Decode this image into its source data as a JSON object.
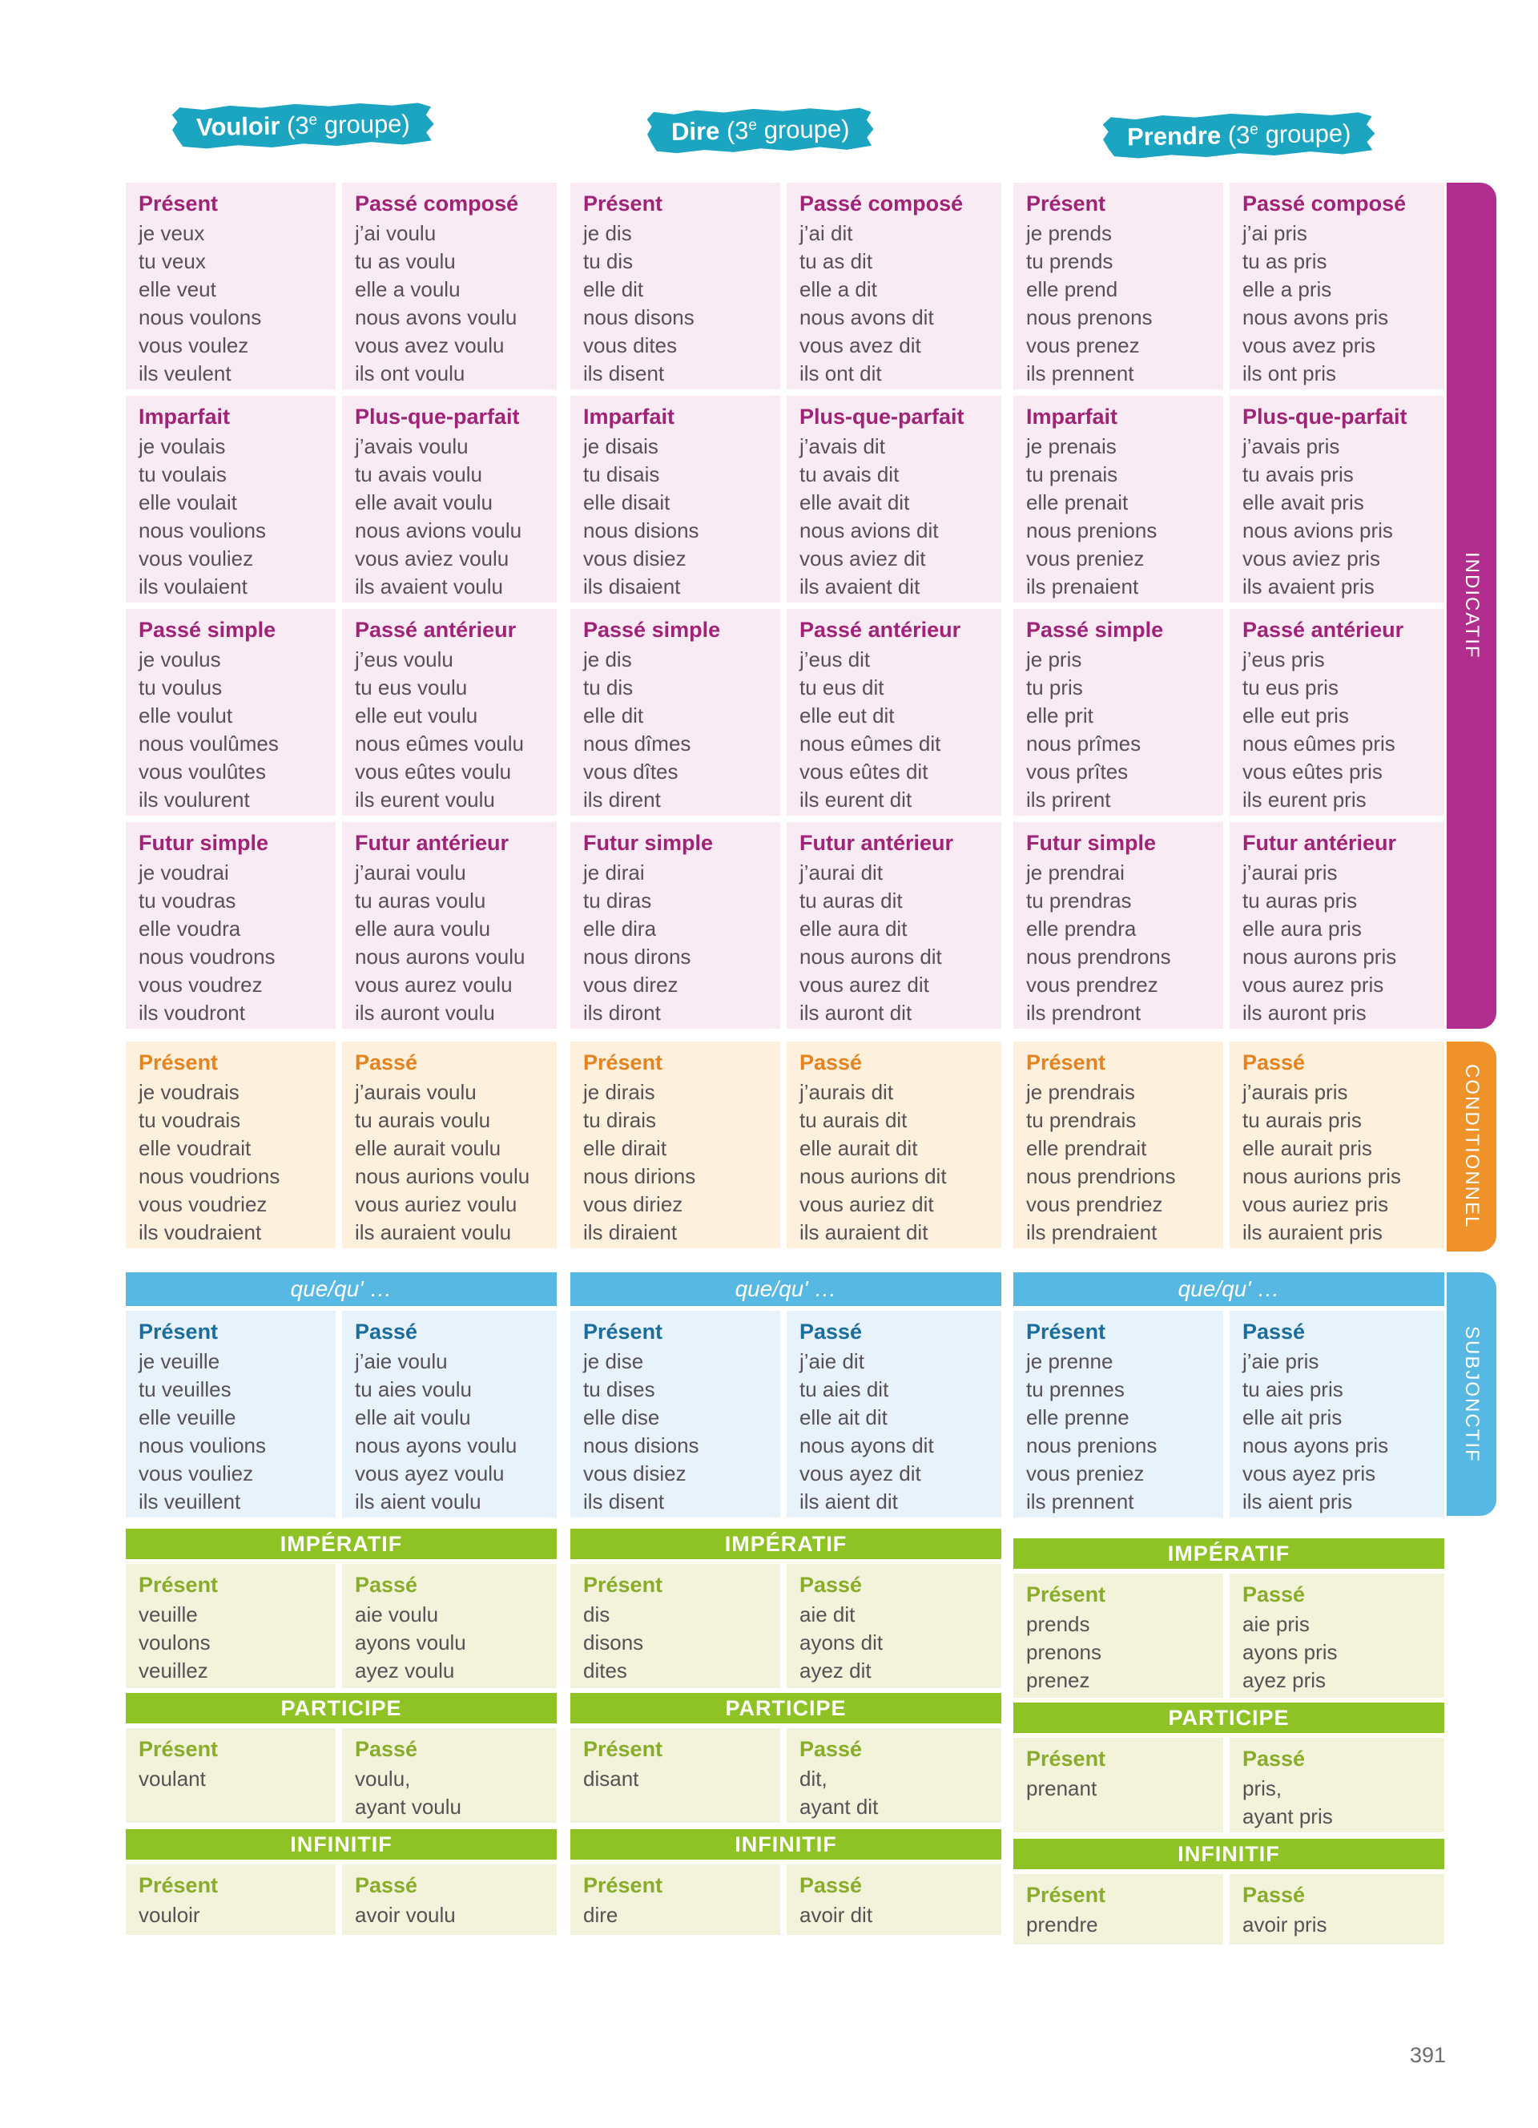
{
  "page": {
    "number": "391"
  },
  "colors": {
    "badge_teal": "#1ba5c0",
    "indicatif_bg": "#f8ebf4",
    "indicatif_title": "#a02377",
    "indicatif_tab": "#b22e8e",
    "conditionnel_bg": "#fdf1de",
    "conditionnel_title": "#e6831f",
    "conditionnel_tab": "#f0922a",
    "subjonctif_bg": "#e8f2fb",
    "subjonctif_title": "#1a6d9d",
    "subjonctif_tab": "#57b9e3",
    "green_bar": "#8fc325",
    "green_bg": "#f2f3da",
    "green_title": "#89ad2b",
    "body_text": "#575155"
  },
  "mode_tabs": [
    {
      "label": "INDICATIF"
    },
    {
      "label": "CONDITIONNEL"
    },
    {
      "label": "SUBJONCTIF"
    }
  ],
  "verbs": [
    {
      "name": "Vouloir",
      "group_open": " (3",
      "group_sup": "e",
      "group_rest": " groupe)",
      "subjonctif_header": "que/qu' …",
      "imperatif_header": "IMPÉRATIF",
      "participe_header": "PARTICIPE",
      "infinitif_header": "INFINITIF",
      "indicatif": [
        {
          "title": "Présent",
          "lines": [
            "je veux",
            "tu veux",
            "elle veut",
            "nous voulons",
            "vous voulez",
            "ils veulent"
          ]
        },
        {
          "title": "Passé composé",
          "lines": [
            "j’ai voulu",
            "tu as voulu",
            "elle a voulu",
            "nous avons voulu",
            "vous avez voulu",
            "ils ont voulu"
          ]
        },
        {
          "title": "Imparfait",
          "lines": [
            "je voulais",
            "tu voulais",
            "elle voulait",
            "nous voulions",
            "vous vouliez",
            "ils voulaient"
          ]
        },
        {
          "title": "Plus-que-parfait",
          "lines": [
            "j’avais voulu",
            "tu avais voulu",
            "elle avait voulu",
            "nous avions voulu",
            "vous aviez voulu",
            "ils avaient voulu"
          ]
        },
        {
          "title": "Passé simple",
          "lines": [
            "je voulus",
            "tu voulus",
            "elle voulut",
            "nous voulûmes",
            "vous voulûtes",
            "ils voulurent"
          ]
        },
        {
          "title": "Passé antérieur",
          "lines": [
            "j’eus voulu",
            "tu eus voulu",
            "elle eut voulu",
            "nous eûmes voulu",
            "vous eûtes voulu",
            "ils eurent voulu"
          ]
        },
        {
          "title": "Futur simple",
          "lines": [
            "je voudrai",
            "tu voudras",
            "elle voudra",
            "nous voudrons",
            "vous voudrez",
            "ils voudront"
          ]
        },
        {
          "title": "Futur antérieur",
          "lines": [
            "j’aurai voulu",
            "tu auras voulu",
            "elle aura voulu",
            "nous aurons voulu",
            "vous aurez voulu",
            "ils auront voulu"
          ]
        }
      ],
      "conditionnel": [
        {
          "title": "Présent",
          "lines": [
            "je voudrais",
            "tu voudrais",
            "elle voudrait",
            "nous voudrions",
            "vous voudriez",
            "ils voudraient"
          ]
        },
        {
          "title": "Passé",
          "lines": [
            "j’aurais voulu",
            "tu aurais voulu",
            "elle aurait voulu",
            "nous aurions voulu",
            "vous auriez voulu",
            "ils auraient voulu"
          ]
        }
      ],
      "subjonctif": [
        {
          "title": "Présent",
          "lines": [
            "je veuille",
            "tu veuilles",
            "elle veuille",
            "nous voulions",
            "vous vouliez",
            "ils veuillent"
          ]
        },
        {
          "title": "Passé",
          "lines": [
            "j’aie voulu",
            "tu aies voulu",
            "elle ait voulu",
            "nous ayons voulu",
            "vous ayez voulu",
            "ils aient voulu"
          ]
        }
      ],
      "imperatif": [
        {
          "title": "Présent",
          "lines": [
            "veuille",
            "voulons",
            "veuillez"
          ]
        },
        {
          "title": "Passé",
          "lines": [
            "aie voulu",
            "ayons voulu",
            "ayez voulu"
          ]
        }
      ],
      "participe": [
        {
          "title": "Présent",
          "lines": [
            "voulant"
          ]
        },
        {
          "title": "Passé",
          "lines": [
            "voulu,",
            "ayant voulu"
          ]
        }
      ],
      "infinitif": [
        {
          "title": "Présent",
          "lines": [
            "vouloir"
          ]
        },
        {
          "title": "Passé",
          "lines": [
            "avoir voulu"
          ]
        }
      ]
    },
    {
      "name": "Dire",
      "group_open": " (3",
      "group_sup": "e",
      "group_rest": " groupe)",
      "subjonctif_header": "que/qu' …",
      "imperatif_header": "IMPÉRATIF",
      "participe_header": "PARTICIPE",
      "infinitif_header": "INFINITIF",
      "indicatif": [
        {
          "title": "Présent",
          "lines": [
            "je dis",
            "tu dis",
            "elle dit",
            "nous disons",
            "vous dites",
            "ils disent"
          ]
        },
        {
          "title": "Passé composé",
          "lines": [
            "j’ai dit",
            "tu as dit",
            "elle a dit",
            "nous avons dit",
            "vous avez dit",
            "ils ont dit"
          ]
        },
        {
          "title": "Imparfait",
          "lines": [
            "je disais",
            "tu disais",
            "elle disait",
            "nous disions",
            "vous disiez",
            "ils disaient"
          ]
        },
        {
          "title": "Plus-que-parfait",
          "lines": [
            "j’avais dit",
            "tu avais dit",
            "elle avait dit",
            "nous avions dit",
            "vous aviez dit",
            "ils avaient dit"
          ]
        },
        {
          "title": "Passé simple",
          "lines": [
            "je dis",
            "tu dis",
            "elle dit",
            "nous dîmes",
            "vous dîtes",
            "ils dirent"
          ]
        },
        {
          "title": "Passé antérieur",
          "lines": [
            "j’eus dit",
            "tu eus dit",
            "elle eut dit",
            "nous eûmes dit",
            "vous eûtes dit",
            "ils eurent dit"
          ]
        },
        {
          "title": "Futur simple",
          "lines": [
            "je dirai",
            "tu diras",
            "elle dira",
            "nous dirons",
            "vous direz",
            "ils diront"
          ]
        },
        {
          "title": "Futur antérieur",
          "lines": [
            "j’aurai dit",
            "tu auras dit",
            "elle aura dit",
            "nous aurons dit",
            "vous aurez dit",
            "ils auront dit"
          ]
        }
      ],
      "conditionnel": [
        {
          "title": "Présent",
          "lines": [
            "je dirais",
            "tu dirais",
            "elle dirait",
            "nous dirions",
            "vous diriez",
            "ils diraient"
          ]
        },
        {
          "title": "Passé",
          "lines": [
            "j’aurais dit",
            "tu aurais dit",
            "elle aurait dit",
            "nous aurions dit",
            "vous auriez dit",
            "ils auraient dit"
          ]
        }
      ],
      "subjonctif": [
        {
          "title": "Présent",
          "lines": [
            "je dise",
            "tu dises",
            "elle dise",
            "nous disions",
            "vous disiez",
            "ils disent"
          ]
        },
        {
          "title": "Passé",
          "lines": [
            "j’aie dit",
            "tu aies dit",
            "elle ait dit",
            "nous ayons dit",
            "vous ayez dit",
            "ils aient dit"
          ]
        }
      ],
      "imperatif": [
        {
          "title": "Présent",
          "lines": [
            "dis",
            "disons",
            "dites"
          ]
        },
        {
          "title": "Passé",
          "lines": [
            "aie dit",
            "ayons dit",
            "ayez dit"
          ]
        }
      ],
      "participe": [
        {
          "title": "Présent",
          "lines": [
            "disant"
          ]
        },
        {
          "title": "Passé",
          "lines": [
            "dit,",
            "ayant dit"
          ]
        }
      ],
      "infinitif": [
        {
          "title": "Présent",
          "lines": [
            "dire"
          ]
        },
        {
          "title": "Passé",
          "lines": [
            "avoir dit"
          ]
        }
      ]
    },
    {
      "name": "Prendre",
      "group_open": " (3",
      "group_sup": "e",
      "group_rest": " groupe)",
      "subjonctif_header": "que/qu' …",
      "imperatif_header": "IMPÉRATIF",
      "participe_header": "PARTICIPE",
      "infinitif_header": "INFINITIF",
      "indicatif": [
        {
          "title": "Présent",
          "lines": [
            "je prends",
            "tu prends",
            "elle prend",
            "nous prenons",
            "vous prenez",
            "ils prennent"
          ]
        },
        {
          "title": "Passé composé",
          "lines": [
            "j’ai pris",
            "tu as pris",
            "elle a pris",
            "nous avons pris",
            "vous avez pris",
            "ils ont pris"
          ]
        },
        {
          "title": "Imparfait",
          "lines": [
            "je prenais",
            "tu prenais",
            "elle prenait",
            "nous prenions",
            "vous preniez",
            "ils prenaient"
          ]
        },
        {
          "title": "Plus-que-parfait",
          "lines": [
            "j’avais pris",
            "tu avais pris",
            "elle avait pris",
            "nous avions pris",
            "vous aviez pris",
            "ils avaient pris"
          ]
        },
        {
          "title": "Passé simple",
          "lines": [
            "je pris",
            "tu pris",
            "elle prit",
            "nous prîmes",
            "vous prîtes",
            "ils prirent"
          ]
        },
        {
          "title": "Passé antérieur",
          "lines": [
            "j’eus pris",
            "tu eus pris",
            "elle eut pris",
            "nous eûmes pris",
            "vous eûtes pris",
            "ils eurent pris"
          ]
        },
        {
          "title": "Futur simple",
          "lines": [
            "je prendrai",
            "tu prendras",
            "elle prendra",
            "nous prendrons",
            "vous prendrez",
            "ils prendront"
          ]
        },
        {
          "title": "Futur antérieur",
          "lines": [
            "j’aurai pris",
            "tu auras pris",
            "elle aura pris",
            "nous aurons pris",
            "vous aurez pris",
            "ils auront pris"
          ]
        }
      ],
      "conditionnel": [
        {
          "title": "Présent",
          "lines": [
            "je prendrais",
            "tu prendrais",
            "elle prendrait",
            "nous prendrions",
            "vous prendriez",
            "ils prendraient"
          ]
        },
        {
          "title": "Passé",
          "lines": [
            "j’aurais pris",
            "tu aurais pris",
            "elle aurait pris",
            "nous aurions pris",
            "vous auriez pris",
            "ils auraient pris"
          ]
        }
      ],
      "subjonctif": [
        {
          "title": "Présent",
          "lines": [
            "je prenne",
            "tu prennes",
            "elle prenne",
            "nous prenions",
            "vous preniez",
            "ils prennent"
          ]
        },
        {
          "title": "Passé",
          "lines": [
            "j’aie pris",
            "tu aies pris",
            "elle ait pris",
            "nous ayons pris",
            "vous ayez pris",
            "ils aient pris"
          ]
        }
      ],
      "imperatif": [
        {
          "title": "Présent",
          "lines": [
            "prends",
            "prenons",
            "prenez"
          ]
        },
        {
          "title": "Passé",
          "lines": [
            "aie pris",
            "ayons pris",
            "ayez pris"
          ]
        }
      ],
      "participe": [
        {
          "title": "Présent",
          "lines": [
            "prenant"
          ]
        },
        {
          "title": "Passé",
          "lines": [
            "pris,",
            "ayant pris"
          ]
        }
      ],
      "infinitif": [
        {
          "title": "Présent",
          "lines": [
            "prendre"
          ]
        },
        {
          "title": "Passé",
          "lines": [
            "avoir pris"
          ]
        }
      ]
    }
  ]
}
